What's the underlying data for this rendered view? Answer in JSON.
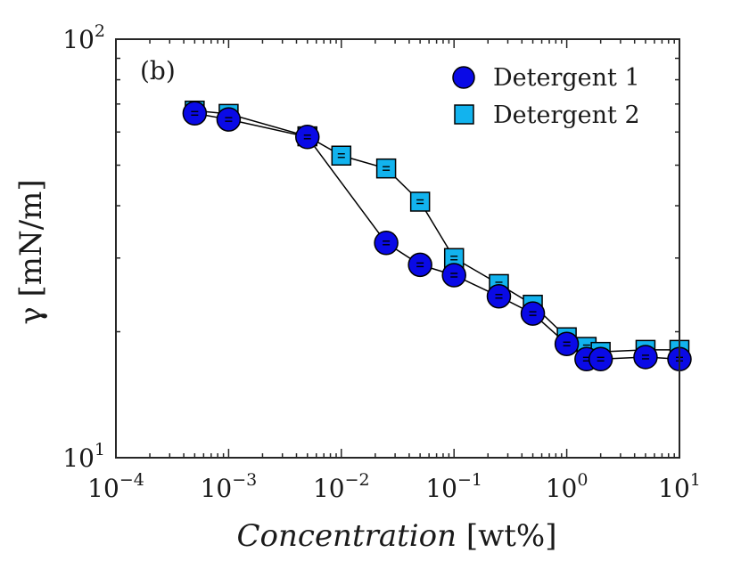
{
  "chart_data": {
    "type": "line",
    "panel_label": "(b)",
    "xlabel": "Concentration",
    "xlabel_units": "[wt%]",
    "ylabel": "γ [mN/m]",
    "xscale": "log",
    "yscale": "log",
    "xlim": [
      0.0001,
      10
    ],
    "ylim": [
      10,
      100
    ],
    "x_ticks": [
      {
        "base": "10",
        "exp": "−4"
      },
      {
        "base": "10",
        "exp": "−3"
      },
      {
        "base": "10",
        "exp": "−2"
      },
      {
        "base": "10",
        "exp": "−1"
      },
      {
        "base": "10",
        "exp": "0"
      },
      {
        "base": "10",
        "exp": "1"
      }
    ],
    "y_ticks": [
      {
        "base": "10",
        "exp": "1"
      },
      {
        "base": "10",
        "exp": "2"
      }
    ],
    "grid": false,
    "legend_position": "top-right",
    "series": [
      {
        "name": "Detergent 1",
        "marker": "circle",
        "color": "#0a0ae6",
        "x": [
          0.0005,
          0.001,
          0.005,
          0.025,
          0.05,
          0.1,
          0.25,
          0.5,
          1,
          1.5,
          2,
          5,
          10
        ],
        "y": [
          66.5,
          64.3,
          58.4,
          32.6,
          28.9,
          27.3,
          24.3,
          22.1,
          18.7,
          17.2,
          17.2,
          17.4,
          17.2
        ]
      },
      {
        "name": "Detergent 2",
        "marker": "square",
        "color": "#12b3ee",
        "x": [
          0.0005,
          0.001,
          0.005,
          0.01,
          0.025,
          0.05,
          0.1,
          0.25,
          0.5,
          1,
          1.5,
          2,
          5,
          10
        ],
        "y": [
          67.5,
          66.3,
          58.6,
          52.7,
          49.1,
          40.9,
          30.0,
          26.0,
          23.2,
          19.4,
          18.4,
          17.9,
          18.1,
          18.1
        ]
      }
    ]
  }
}
